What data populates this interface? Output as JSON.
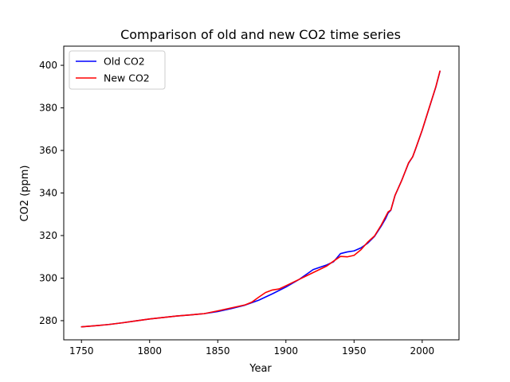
{
  "chart_data": {
    "type": "line",
    "title": "Comparison of old and new CO2 time series",
    "xlabel": "Year",
    "ylabel": "CO2 (ppm)",
    "xlim": [
      1737,
      2027
    ],
    "ylim": [
      271,
      409
    ],
    "xticks": [
      1750,
      1800,
      1850,
      1900,
      1950,
      2000
    ],
    "yticks": [
      280,
      300,
      320,
      340,
      360,
      380,
      400
    ],
    "grid": false,
    "legend_position": "upper-left",
    "series": [
      {
        "name": "Old CO2",
        "color": "#0000ff",
        "points": [
          [
            1750,
            277.1
          ],
          [
            1760,
            277.6
          ],
          [
            1770,
            278.2
          ],
          [
            1780,
            279.0
          ],
          [
            1790,
            279.9
          ],
          [
            1800,
            280.8
          ],
          [
            1810,
            281.5
          ],
          [
            1820,
            282.2
          ],
          [
            1830,
            282.7
          ],
          [
            1840,
            283.3
          ],
          [
            1850,
            284.3
          ],
          [
            1860,
            285.7
          ],
          [
            1870,
            287.3
          ],
          [
            1880,
            289.6
          ],
          [
            1890,
            292.6
          ],
          [
            1900,
            295.8
          ],
          [
            1910,
            299.5
          ],
          [
            1920,
            304.0
          ],
          [
            1930,
            306.2
          ],
          [
            1935,
            307.7
          ],
          [
            1940,
            311.5
          ],
          [
            1945,
            312.3
          ],
          [
            1950,
            312.8
          ],
          [
            1955,
            314.2
          ],
          [
            1960,
            316.4
          ],
          [
            1965,
            319.6
          ],
          [
            1970,
            324.5
          ],
          [
            1973,
            327.8
          ],
          [
            1975,
            330.6
          ],
          [
            1977,
            331.9
          ],
          [
            1980,
            338.7
          ],
          [
            1985,
            346.0
          ],
          [
            1990,
            354.0
          ],
          [
            1993,
            357.0
          ],
          [
            1995,
            360.4
          ],
          [
            2000,
            369.5
          ],
          [
            2005,
            379.7
          ],
          [
            2010,
            389.8
          ],
          [
            2013,
            397.1
          ]
        ]
      },
      {
        "name": "New CO2",
        "color": "#ff0000",
        "points": [
          [
            1750,
            277.1
          ],
          [
            1760,
            277.6
          ],
          [
            1770,
            278.2
          ],
          [
            1780,
            279.0
          ],
          [
            1790,
            279.9
          ],
          [
            1800,
            280.8
          ],
          [
            1810,
            281.5
          ],
          [
            1820,
            282.2
          ],
          [
            1830,
            282.7
          ],
          [
            1840,
            283.3
          ],
          [
            1850,
            284.6
          ],
          [
            1860,
            286.0
          ],
          [
            1870,
            287.4
          ],
          [
            1875,
            288.7
          ],
          [
            1880,
            291.0
          ],
          [
            1885,
            293.2
          ],
          [
            1890,
            294.4
          ],
          [
            1895,
            294.9
          ],
          [
            1900,
            296.4
          ],
          [
            1910,
            299.5
          ],
          [
            1920,
            302.6
          ],
          [
            1930,
            305.7
          ],
          [
            1935,
            308.0
          ],
          [
            1940,
            310.2
          ],
          [
            1945,
            310.0
          ],
          [
            1950,
            310.7
          ],
          [
            1955,
            313.3
          ],
          [
            1960,
            316.9
          ],
          [
            1965,
            319.8
          ],
          [
            1970,
            325.0
          ],
          [
            1975,
            331.1
          ],
          [
            1977,
            332.0
          ],
          [
            1980,
            338.8
          ],
          [
            1985,
            345.9
          ],
          [
            1990,
            354.2
          ],
          [
            1993,
            357.0
          ],
          [
            1995,
            360.5
          ],
          [
            2000,
            369.6
          ],
          [
            2005,
            379.8
          ],
          [
            2010,
            389.9
          ],
          [
            2013,
            397.3
          ]
        ]
      }
    ]
  }
}
